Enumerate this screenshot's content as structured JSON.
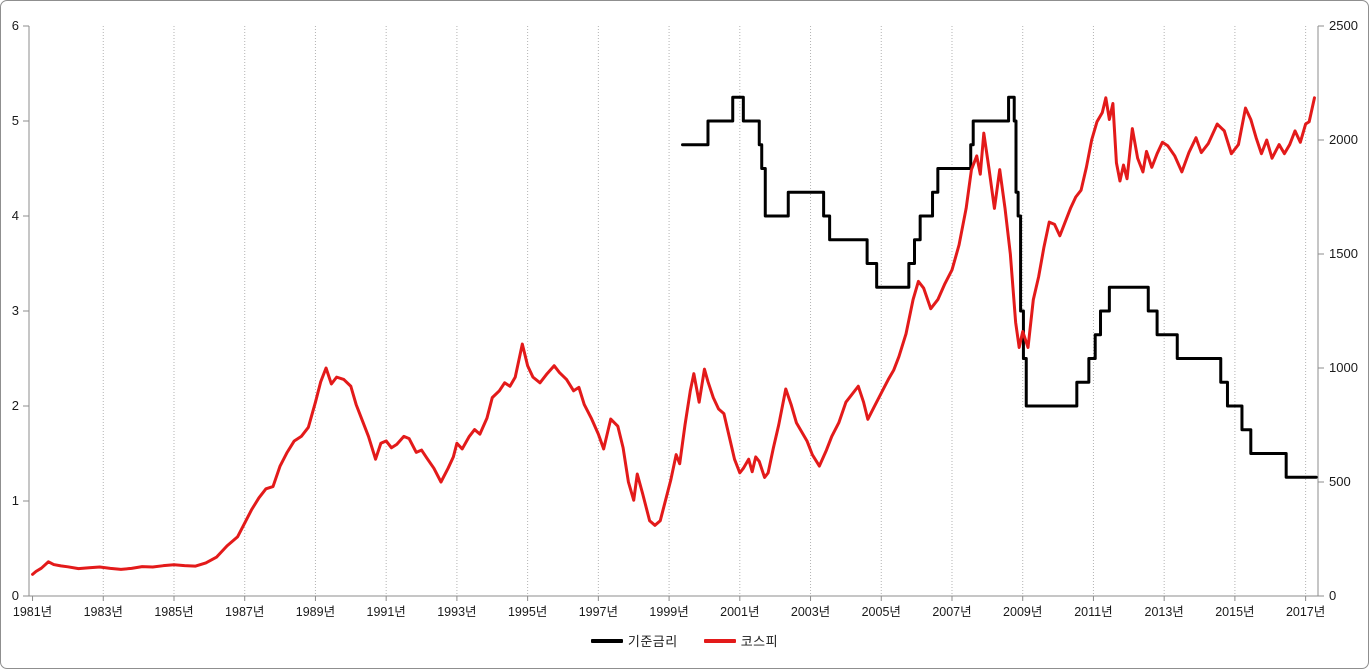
{
  "page": {
    "background": "#ffffff",
    "frame_border_color": "#8f8f8f"
  },
  "legend": {
    "items": [
      {
        "label": "기준금리",
        "color": "#000000"
      },
      {
        "label": "코스피",
        "color": "#e31a1a"
      }
    ]
  },
  "chart_data": {
    "type": "line",
    "title": "",
    "xlabel": "",
    "ylabel_left": "",
    "ylabel_right": "",
    "grid": "dotted-vertical",
    "grid_color": "#b3b3b3",
    "axis_color": "#8c8c8c",
    "tick_label_color": "#1a1a1a",
    "legend_position": "bottom-center",
    "xlim": [
      1980.9,
      2017.35
    ],
    "left_axis": {
      "lim": [
        0,
        6
      ],
      "ticks": [
        {
          "v": 6,
          "label": "6"
        },
        {
          "v": 5,
          "label": "5"
        },
        {
          "v": 4,
          "label": "4"
        },
        {
          "v": 3,
          "label": "3"
        },
        {
          "v": 2,
          "label": "2"
        },
        {
          "v": 1,
          "label": "1"
        },
        {
          "v": 0,
          "label": "0"
        }
      ]
    },
    "right_axis": {
      "lim": [
        0,
        2500
      ],
      "ticks": [
        {
          "v": 2500,
          "label": "2500"
        },
        {
          "v": 2000,
          "label": "2000"
        },
        {
          "v": 1500,
          "label": "1500"
        },
        {
          "v": 1000,
          "label": "1000"
        },
        {
          "v": 500,
          "label": "500"
        },
        {
          "v": 0,
          "label": "0"
        }
      ]
    },
    "x_axis": {
      "ticks": [
        {
          "year": 1981,
          "label": "1981년"
        },
        {
          "year": 1983,
          "label": "1983년"
        },
        {
          "year": 1985,
          "label": "1985년"
        },
        {
          "year": 1987,
          "label": "1987년"
        },
        {
          "year": 1989,
          "label": "1989년"
        },
        {
          "year": 1991,
          "label": "1991년"
        },
        {
          "year": 1993,
          "label": "1993년"
        },
        {
          "year": 1995,
          "label": "1995년"
        },
        {
          "year": 1997,
          "label": "1997년"
        },
        {
          "year": 1999,
          "label": "1999년"
        },
        {
          "year": 2001,
          "label": "2001년"
        },
        {
          "year": 2003,
          "label": "2003년"
        },
        {
          "year": 2005,
          "label": "2005년"
        },
        {
          "year": 2007,
          "label": "2007년"
        },
        {
          "year": 2009,
          "label": "2009년"
        },
        {
          "year": 2011,
          "label": "2011년"
        },
        {
          "year": 2013,
          "label": "2013년"
        },
        {
          "year": 2015,
          "label": "2015년"
        },
        {
          "year": 2017,
          "label": "2017년"
        }
      ]
    },
    "series": [
      {
        "name": "기준금리",
        "axis": "left",
        "color": "#000000",
        "line_width": 3,
        "type": "step",
        "points": [
          [
            1999.38,
            4.75
          ],
          [
            2000.1,
            5.0
          ],
          [
            2000.8,
            5.25
          ],
          [
            2001.1,
            5.0
          ],
          [
            2001.55,
            4.75
          ],
          [
            2001.62,
            4.5
          ],
          [
            2001.72,
            4.0
          ],
          [
            2002.37,
            4.25
          ],
          [
            2003.37,
            4.0
          ],
          [
            2003.54,
            3.75
          ],
          [
            2004.6,
            3.5
          ],
          [
            2004.87,
            3.25
          ],
          [
            2005.78,
            3.5
          ],
          [
            2005.94,
            3.75
          ],
          [
            2006.1,
            4.0
          ],
          [
            2006.45,
            4.25
          ],
          [
            2006.6,
            4.5
          ],
          [
            2007.53,
            4.75
          ],
          [
            2007.6,
            5.0
          ],
          [
            2008.6,
            5.25
          ],
          [
            2008.76,
            5.0
          ],
          [
            2008.81,
            4.25
          ],
          [
            2008.87,
            4.0
          ],
          [
            2008.94,
            3.0
          ],
          [
            2009.02,
            2.5
          ],
          [
            2009.1,
            2.0
          ],
          [
            2010.53,
            2.25
          ],
          [
            2010.87,
            2.5
          ],
          [
            2011.05,
            2.75
          ],
          [
            2011.2,
            3.0
          ],
          [
            2011.45,
            3.25
          ],
          [
            2012.55,
            3.0
          ],
          [
            2012.8,
            2.75
          ],
          [
            2013.37,
            2.5
          ],
          [
            2014.6,
            2.25
          ],
          [
            2014.79,
            2.0
          ],
          [
            2015.2,
            1.75
          ],
          [
            2015.45,
            1.5
          ],
          [
            2016.45,
            1.25
          ],
          [
            2017.3,
            1.25
          ]
        ]
      },
      {
        "name": "코스피",
        "axis": "right",
        "color": "#e31a1a",
        "line_width": 3,
        "type": "line",
        "points": [
          [
            1981.0,
            95
          ],
          [
            1981.1,
            108
          ],
          [
            1981.25,
            122
          ],
          [
            1981.45,
            150
          ],
          [
            1981.6,
            138
          ],
          [
            1981.8,
            132
          ],
          [
            1982.0,
            128
          ],
          [
            1982.3,
            120
          ],
          [
            1982.6,
            124
          ],
          [
            1982.9,
            127
          ],
          [
            1983.2,
            121
          ],
          [
            1983.5,
            117
          ],
          [
            1983.8,
            121
          ],
          [
            1984.1,
            129
          ],
          [
            1984.4,
            127
          ],
          [
            1984.7,
            133
          ],
          [
            1985.0,
            137
          ],
          [
            1985.3,
            133
          ],
          [
            1985.6,
            131
          ],
          [
            1985.9,
            145
          ],
          [
            1986.2,
            170
          ],
          [
            1986.5,
            220
          ],
          [
            1986.8,
            260
          ],
          [
            1987.0,
            320
          ],
          [
            1987.2,
            380
          ],
          [
            1987.4,
            430
          ],
          [
            1987.6,
            470
          ],
          [
            1987.8,
            480
          ],
          [
            1988.0,
            570
          ],
          [
            1988.2,
            630
          ],
          [
            1988.4,
            680
          ],
          [
            1988.6,
            700
          ],
          [
            1988.8,
            740
          ],
          [
            1989.0,
            850
          ],
          [
            1989.15,
            940
          ],
          [
            1989.3,
            1000
          ],
          [
            1989.45,
            930
          ],
          [
            1989.6,
            960
          ],
          [
            1989.8,
            950
          ],
          [
            1990.0,
            920
          ],
          [
            1990.15,
            840
          ],
          [
            1990.3,
            780
          ],
          [
            1990.5,
            700
          ],
          [
            1990.7,
            600
          ],
          [
            1990.85,
            670
          ],
          [
            1991.0,
            680
          ],
          [
            1991.15,
            650
          ],
          [
            1991.3,
            665
          ],
          [
            1991.5,
            700
          ],
          [
            1991.65,
            690
          ],
          [
            1991.85,
            630
          ],
          [
            1992.0,
            640
          ],
          [
            1992.15,
            605
          ],
          [
            1992.35,
            560
          ],
          [
            1992.55,
            500
          ],
          [
            1992.75,
            560
          ],
          [
            1992.9,
            610
          ],
          [
            1993.0,
            670
          ],
          [
            1993.15,
            645
          ],
          [
            1993.35,
            700
          ],
          [
            1993.5,
            730
          ],
          [
            1993.65,
            710
          ],
          [
            1993.85,
            780
          ],
          [
            1994.0,
            870
          ],
          [
            1994.2,
            900
          ],
          [
            1994.35,
            935
          ],
          [
            1994.5,
            920
          ],
          [
            1994.65,
            960
          ],
          [
            1994.85,
            1105
          ],
          [
            1995.0,
            1010
          ],
          [
            1995.15,
            960
          ],
          [
            1995.35,
            935
          ],
          [
            1995.55,
            975
          ],
          [
            1995.75,
            1010
          ],
          [
            1995.9,
            980
          ],
          [
            1996.1,
            950
          ],
          [
            1996.3,
            900
          ],
          [
            1996.45,
            915
          ],
          [
            1996.6,
            840
          ],
          [
            1996.8,
            780
          ],
          [
            1997.0,
            710
          ],
          [
            1997.15,
            645
          ],
          [
            1997.35,
            776
          ],
          [
            1997.55,
            745
          ],
          [
            1997.7,
            650
          ],
          [
            1997.85,
            500
          ],
          [
            1998.0,
            420
          ],
          [
            1998.1,
            535
          ],
          [
            1998.25,
            450
          ],
          [
            1998.45,
            330
          ],
          [
            1998.6,
            310
          ],
          [
            1998.75,
            330
          ],
          [
            1998.9,
            420
          ],
          [
            1999.05,
            510
          ],
          [
            1999.2,
            620
          ],
          [
            1999.3,
            580
          ],
          [
            1999.45,
            750
          ],
          [
            1999.6,
            900
          ],
          [
            1999.7,
            975
          ],
          [
            1999.85,
            850
          ],
          [
            2000.0,
            995
          ],
          [
            2000.1,
            940
          ],
          [
            2000.25,
            870
          ],
          [
            2000.4,
            820
          ],
          [
            2000.55,
            800
          ],
          [
            2000.7,
            700
          ],
          [
            2000.85,
            600
          ],
          [
            2001.0,
            540
          ],
          [
            2001.1,
            560
          ],
          [
            2001.25,
            600
          ],
          [
            2001.35,
            545
          ],
          [
            2001.45,
            610
          ],
          [
            2001.55,
            590
          ],
          [
            2001.7,
            520
          ],
          [
            2001.8,
            540
          ],
          [
            2001.95,
            650
          ],
          [
            2002.1,
            750
          ],
          [
            2002.3,
            908
          ],
          [
            2002.45,
            840
          ],
          [
            2002.6,
            760
          ],
          [
            2002.75,
            720
          ],
          [
            2002.9,
            680
          ],
          [
            2003.05,
            620
          ],
          [
            2003.25,
            570
          ],
          [
            2003.45,
            640
          ],
          [
            2003.6,
            700
          ],
          [
            2003.8,
            760
          ],
          [
            2004.0,
            850
          ],
          [
            2004.35,
            920
          ],
          [
            2004.5,
            850
          ],
          [
            2004.62,
            775
          ],
          [
            2004.8,
            830
          ],
          [
            2005.0,
            890
          ],
          [
            2005.2,
            950
          ],
          [
            2005.35,
            990
          ],
          [
            2005.5,
            1050
          ],
          [
            2005.7,
            1150
          ],
          [
            2005.9,
            1300
          ],
          [
            2006.05,
            1380
          ],
          [
            2006.2,
            1350
          ],
          [
            2006.4,
            1260
          ],
          [
            2006.6,
            1300
          ],
          [
            2006.8,
            1370
          ],
          [
            2007.0,
            1430
          ],
          [
            2007.2,
            1540
          ],
          [
            2007.4,
            1700
          ],
          [
            2007.55,
            1870
          ],
          [
            2007.7,
            1930
          ],
          [
            2007.8,
            1850
          ],
          [
            2007.9,
            2030
          ],
          [
            2008.05,
            1870
          ],
          [
            2008.2,
            1700
          ],
          [
            2008.35,
            1870
          ],
          [
            2008.5,
            1700
          ],
          [
            2008.65,
            1500
          ],
          [
            2008.8,
            1200
          ],
          [
            2008.9,
            1090
          ],
          [
            2009.0,
            1160
          ],
          [
            2009.15,
            1090
          ],
          [
            2009.3,
            1300
          ],
          [
            2009.45,
            1400
          ],
          [
            2009.6,
            1530
          ],
          [
            2009.75,
            1640
          ],
          [
            2009.9,
            1630
          ],
          [
            2010.05,
            1580
          ],
          [
            2010.2,
            1640
          ],
          [
            2010.35,
            1700
          ],
          [
            2010.5,
            1750
          ],
          [
            2010.65,
            1780
          ],
          [
            2010.8,
            1880
          ],
          [
            2010.95,
            2000
          ],
          [
            2011.1,
            2080
          ],
          [
            2011.25,
            2120
          ],
          [
            2011.35,
            2185
          ],
          [
            2011.45,
            2090
          ],
          [
            2011.55,
            2160
          ],
          [
            2011.65,
            1900
          ],
          [
            2011.75,
            1820
          ],
          [
            2011.85,
            1890
          ],
          [
            2011.95,
            1830
          ],
          [
            2012.1,
            2050
          ],
          [
            2012.25,
            1920
          ],
          [
            2012.4,
            1860
          ],
          [
            2012.5,
            1950
          ],
          [
            2012.65,
            1880
          ],
          [
            2012.8,
            1940
          ],
          [
            2012.95,
            1990
          ],
          [
            2013.1,
            1975
          ],
          [
            2013.3,
            1930
          ],
          [
            2013.5,
            1860
          ],
          [
            2013.7,
            1945
          ],
          [
            2013.9,
            2010
          ],
          [
            2014.05,
            1945
          ],
          [
            2014.25,
            1985
          ],
          [
            2014.5,
            2070
          ],
          [
            2014.7,
            2040
          ],
          [
            2014.9,
            1940
          ],
          [
            2015.1,
            1980
          ],
          [
            2015.3,
            2140
          ],
          [
            2015.45,
            2090
          ],
          [
            2015.6,
            2010
          ],
          [
            2015.75,
            1940
          ],
          [
            2015.9,
            2000
          ],
          [
            2016.05,
            1920
          ],
          [
            2016.25,
            1980
          ],
          [
            2016.4,
            1940
          ],
          [
            2016.55,
            1980
          ],
          [
            2016.7,
            2040
          ],
          [
            2016.85,
            1990
          ],
          [
            2017.0,
            2070
          ],
          [
            2017.1,
            2080
          ],
          [
            2017.25,
            2185
          ]
        ]
      }
    ]
  }
}
